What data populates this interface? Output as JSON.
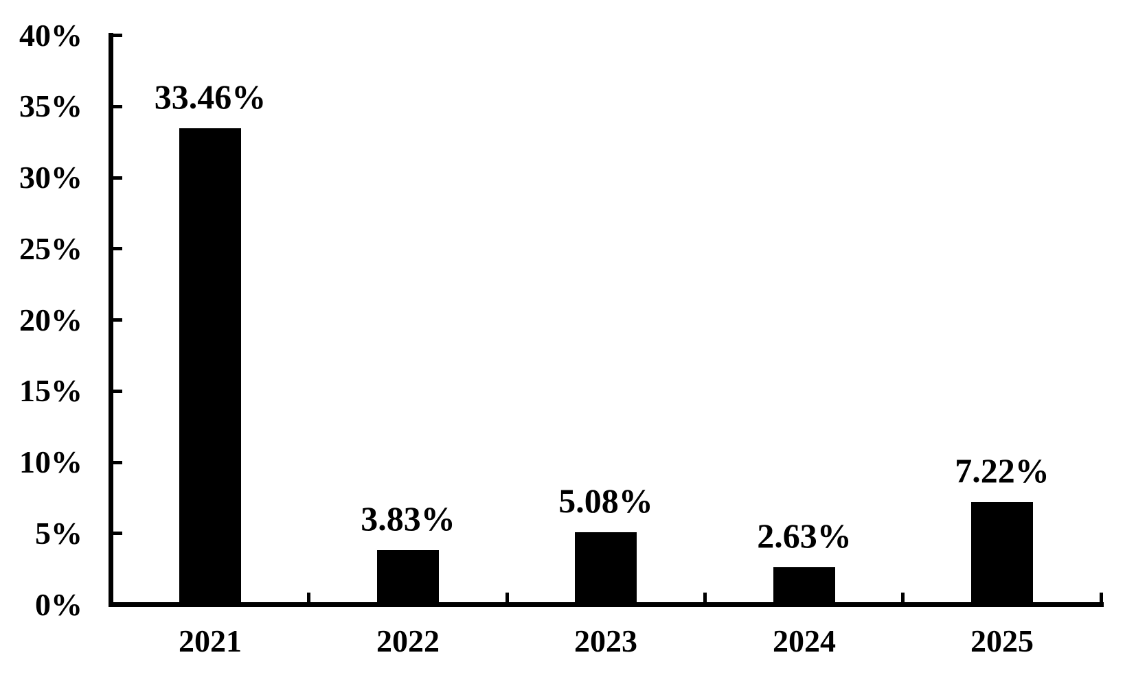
{
  "chart_data": {
    "type": "bar",
    "title": "",
    "xlabel": "",
    "ylabel": "",
    "categories": [
      "2021",
      "2022",
      "2023",
      "2024",
      "2025"
    ],
    "values": [
      33.46,
      3.83,
      5.08,
      2.63,
      7.22
    ],
    "value_labels": [
      "33.46%",
      "3.83%",
      "5.08%",
      "2.63%",
      "7.22%"
    ],
    "ylim": [
      0,
      40
    ],
    "ytick_step": 5,
    "ytick_labels": [
      "0%",
      "5%",
      "10%",
      "15%",
      "20%",
      "25%",
      "30%",
      "35%",
      "40%"
    ],
    "grid": false,
    "legend": "none",
    "bar_color": "#000000",
    "axis_color": "#000000",
    "background_color": "#ffffff",
    "tick_style": "inside"
  }
}
